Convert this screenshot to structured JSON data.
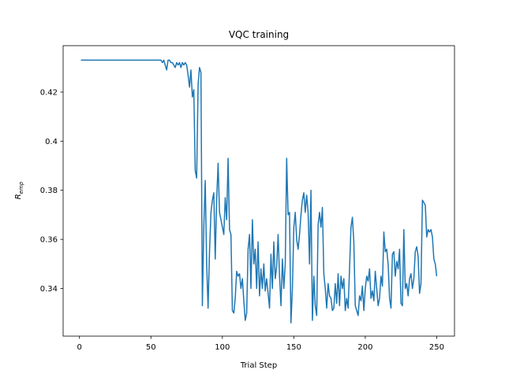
{
  "chart_data": {
    "type": "line",
    "title": "VQC training",
    "xlabel": "Trial Step",
    "ylabel": {
      "base": "R",
      "sub": "emp"
    },
    "xlim": [
      -11.45,
      262.45
    ],
    "ylim": [
      0.3206,
      0.4389
    ],
    "xticks": [
      0,
      50,
      100,
      150,
      200,
      250
    ],
    "yticks": [
      0.34,
      0.36,
      0.38,
      0.4,
      0.42
    ],
    "grid": false,
    "x": [
      1,
      2,
      3,
      4,
      5,
      6,
      7,
      8,
      9,
      10,
      11,
      12,
      13,
      14,
      15,
      16,
      17,
      18,
      19,
      20,
      21,
      22,
      23,
      24,
      25,
      26,
      27,
      28,
      29,
      30,
      31,
      32,
      33,
      34,
      35,
      36,
      37,
      38,
      39,
      40,
      41,
      42,
      43,
      44,
      45,
      46,
      47,
      48,
      49,
      50,
      51,
      52,
      53,
      54,
      55,
      56,
      57,
      58,
      59,
      60,
      61,
      62,
      63,
      64,
      65,
      66,
      67,
      68,
      69,
      70,
      71,
      72,
      73,
      74,
      75,
      76,
      77,
      78,
      79,
      80,
      81,
      82,
      83,
      84,
      85,
      86,
      87,
      88,
      89,
      90,
      91,
      92,
      93,
      94,
      95,
      96,
      97,
      98,
      99,
      100,
      101,
      102,
      103,
      104,
      105,
      106,
      107,
      108,
      109,
      110,
      111,
      112,
      113,
      114,
      115,
      116,
      117,
      118,
      119,
      120,
      121,
      122,
      123,
      124,
      125,
      126,
      127,
      128,
      129,
      130,
      131,
      132,
      133,
      134,
      135,
      136,
      137,
      138,
      139,
      140,
      141,
      142,
      143,
      144,
      145,
      146,
      147,
      148,
      149,
      150,
      151,
      152,
      153,
      154,
      155,
      156,
      157,
      158,
      159,
      160,
      161,
      162,
      163,
      164,
      165,
      166,
      167,
      168,
      169,
      170,
      171,
      172,
      173,
      174,
      175,
      176,
      177,
      178,
      179,
      180,
      181,
      182,
      183,
      184,
      185,
      186,
      187,
      188,
      189,
      190,
      191,
      192,
      193,
      194,
      195,
      196,
      197,
      198,
      199,
      200,
      201,
      202,
      203,
      204,
      205,
      206,
      207,
      208,
      209,
      210,
      211,
      212,
      213,
      214,
      215,
      216,
      217,
      218,
      219,
      220,
      221,
      222,
      223,
      224,
      225,
      226,
      227,
      228,
      229,
      230,
      231,
      232,
      233,
      234,
      235,
      236,
      237,
      238,
      239,
      240,
      241,
      242,
      243,
      244,
      245,
      246,
      247,
      248,
      249,
      250
    ],
    "series": [
      {
        "name": "R_emp",
        "color": "#1f77b4",
        "values": [
          0.433,
          0.433,
          0.433,
          0.433,
          0.433,
          0.433,
          0.433,
          0.433,
          0.433,
          0.433,
          0.433,
          0.433,
          0.433,
          0.433,
          0.433,
          0.433,
          0.433,
          0.433,
          0.433,
          0.433,
          0.433,
          0.433,
          0.433,
          0.433,
          0.433,
          0.433,
          0.433,
          0.433,
          0.433,
          0.433,
          0.433,
          0.433,
          0.433,
          0.433,
          0.433,
          0.433,
          0.433,
          0.433,
          0.433,
          0.433,
          0.433,
          0.433,
          0.433,
          0.433,
          0.433,
          0.433,
          0.433,
          0.433,
          0.433,
          0.433,
          0.433,
          0.433,
          0.433,
          0.433,
          0.433,
          0.433,
          0.433,
          0.432,
          0.433,
          0.431,
          0.429,
          0.433,
          0.433,
          0.432,
          0.432,
          0.431,
          0.43,
          0.432,
          0.431,
          0.432,
          0.43,
          0.432,
          0.431,
          0.432,
          0.431,
          0.427,
          0.422,
          0.429,
          0.418,
          0.421,
          0.388,
          0.385,
          0.423,
          0.43,
          0.428,
          0.333,
          0.365,
          0.384,
          0.35,
          0.332,
          0.355,
          0.371,
          0.376,
          0.379,
          0.352,
          0.376,
          0.391,
          0.371,
          0.368,
          0.365,
          0.362,
          0.377,
          0.368,
          0.393,
          0.364,
          0.362,
          0.331,
          0.33,
          0.336,
          0.347,
          0.345,
          0.346,
          0.34,
          0.344,
          0.335,
          0.327,
          0.33,
          0.356,
          0.362,
          0.34,
          0.368,
          0.35,
          0.356,
          0.34,
          0.359,
          0.337,
          0.348,
          0.34,
          0.35,
          0.339,
          0.344,
          0.338,
          0.332,
          0.354,
          0.34,
          0.359,
          0.344,
          0.349,
          0.362,
          0.345,
          0.333,
          0.352,
          0.34,
          0.35,
          0.393,
          0.37,
          0.371,
          0.326,
          0.34,
          0.365,
          0.371,
          0.36,
          0.356,
          0.362,
          0.37,
          0.376,
          0.379,
          0.371,
          0.378,
          0.371,
          0.35,
          0.38,
          0.327,
          0.345,
          0.333,
          0.329,
          0.366,
          0.371,
          0.365,
          0.373,
          0.346,
          0.34,
          0.332,
          0.342,
          0.337,
          0.336,
          0.331,
          0.332,
          0.342,
          0.334,
          0.346,
          0.333,
          0.345,
          0.34,
          0.344,
          0.331,
          0.336,
          0.332,
          0.348,
          0.365,
          0.369,
          0.359,
          0.333,
          0.331,
          0.329,
          0.337,
          0.335,
          0.341,
          0.331,
          0.34,
          0.345,
          0.343,
          0.348,
          0.336,
          0.339,
          0.335,
          0.347,
          0.34,
          0.333,
          0.336,
          0.345,
          0.341,
          0.363,
          0.355,
          0.356,
          0.35,
          0.336,
          0.332,
          0.354,
          0.355,
          0.345,
          0.351,
          0.348,
          0.356,
          0.334,
          0.333,
          0.364,
          0.34,
          0.342,
          0.337,
          0.344,
          0.346,
          0.34,
          0.344,
          0.355,
          0.357,
          0.353,
          0.338,
          0.342,
          0.376,
          0.375,
          0.374,
          0.361,
          0.364,
          0.363,
          0.364,
          0.361,
          0.352,
          0.35,
          0.345
        ]
      }
    ]
  }
}
